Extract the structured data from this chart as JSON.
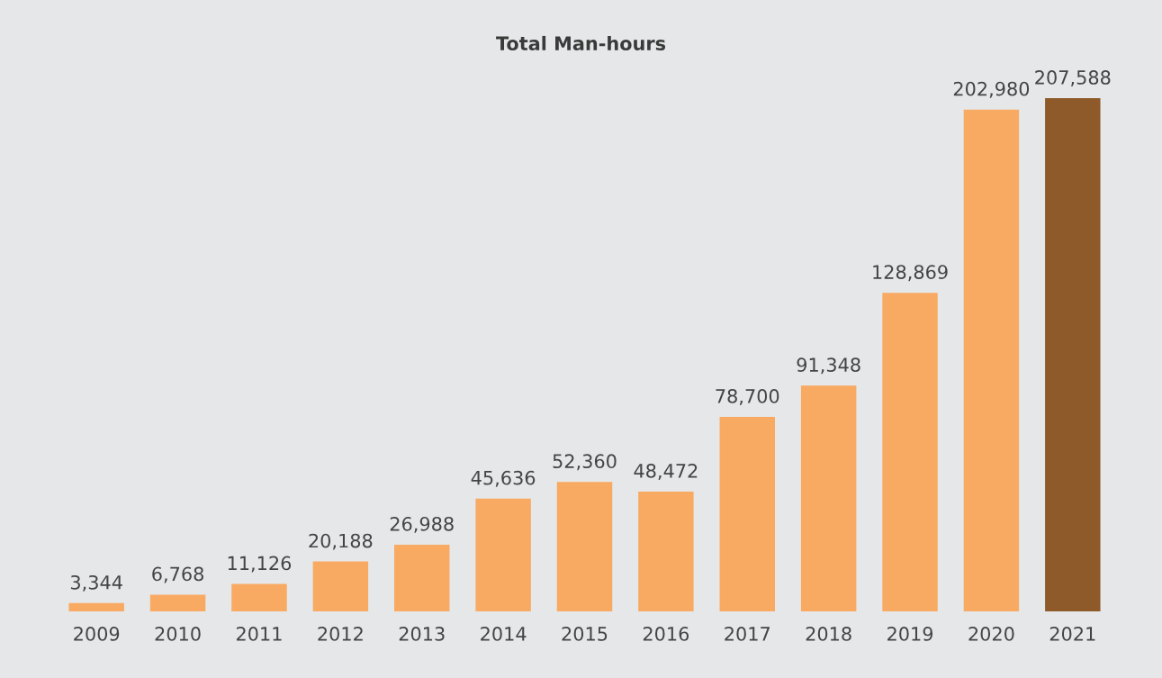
{
  "chart_data": {
    "type": "bar",
    "title": "Total Man-hours",
    "categories": [
      "2009",
      "2010",
      "2011",
      "2012",
      "2013",
      "2014",
      "2015",
      "2016",
      "2017",
      "2018",
      "2019",
      "2020",
      "2021"
    ],
    "values": [
      3344,
      6768,
      11126,
      20188,
      26988,
      45636,
      52360,
      48472,
      78700,
      91348,
      128869,
      202980,
      207588
    ],
    "colors": [
      "#f9aa62",
      "#f9aa62",
      "#f9aa62",
      "#f9aa62",
      "#f9aa62",
      "#f9aa62",
      "#f9aa62",
      "#f9aa62",
      "#f9aa62",
      "#f9aa62",
      "#f9aa62",
      "#f9aa62",
      "#8f5a2a"
    ],
    "value_labels": [
      "3,344",
      "6,768",
      "11,126",
      "20,188",
      "26,988",
      "45,636",
      "52,360",
      "48,472",
      "78,700",
      "91,348",
      "128,869",
      "202,980",
      "207,588"
    ],
    "tick_labels": "x",
    "grid": false,
    "legend": false
  }
}
